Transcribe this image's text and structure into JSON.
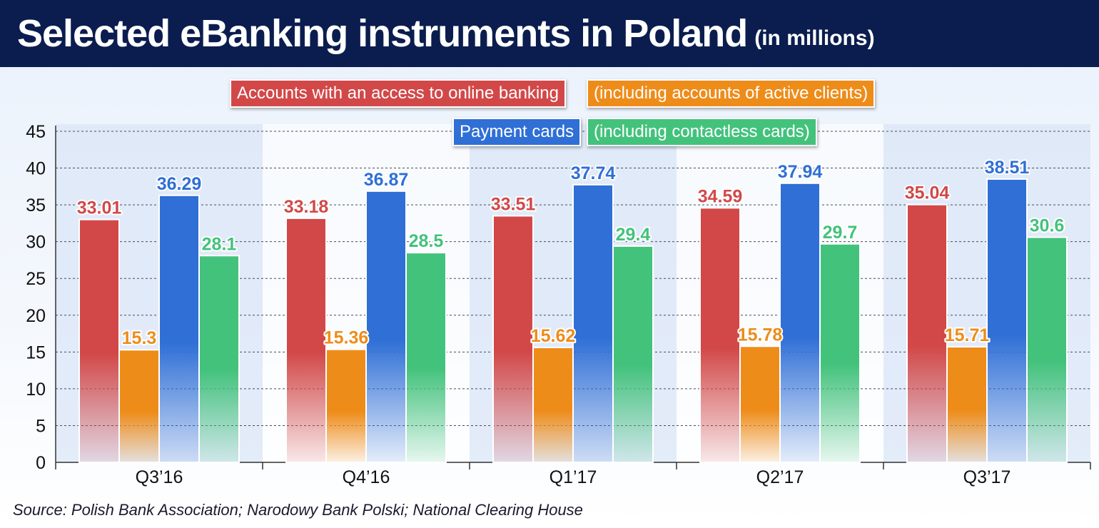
{
  "header": {
    "title": "Selected eBanking instruments in Poland",
    "subtitle": "(in millions)"
  },
  "legend": {
    "accounts": "Accounts with an access to online banking",
    "accounts_active": "(including accounts of active clients)",
    "cards": "Payment cards",
    "cards_contactless": "(including contactless cards)"
  },
  "source": "Source: Polish Bank Association; Narodowy Bank Polski; National Clearing House",
  "colors": {
    "accounts": "#d24848",
    "accounts_active": "#ee8c1a",
    "cards": "#2f6fd6",
    "cards_contactless": "#43c27c"
  },
  "chart_data": {
    "type": "bar",
    "title": "Selected eBanking instruments in Poland",
    "subtitle": "(in millions)",
    "categories": [
      "Q3’16",
      "Q4’16",
      "Q1’17",
      "Q2’17",
      "Q3’17"
    ],
    "series": [
      {
        "name": "Accounts with an access to online banking",
        "values": [
          33.01,
          33.18,
          33.51,
          34.59,
          35.04
        ],
        "labels": [
          "33.01",
          "33.18",
          "33.51",
          "34.59",
          "35.04"
        ]
      },
      {
        "name": "(including accounts of active clients)",
        "values": [
          15.3,
          15.36,
          15.62,
          15.78,
          15.71
        ],
        "labels": [
          "15.3",
          "15.36",
          "15.62",
          "15.78",
          "15.71"
        ]
      },
      {
        "name": "Payment cards",
        "values": [
          36.29,
          36.87,
          37.74,
          37.94,
          38.51
        ],
        "labels": [
          "36.29",
          "36.87",
          "37.74",
          "37.94",
          "38.51"
        ]
      },
      {
        "name": "(including contactless cards)",
        "values": [
          28.1,
          28.5,
          29.4,
          29.7,
          30.6
        ],
        "labels": [
          "28.1",
          "28.5",
          "29.4",
          "29.7",
          "30.6"
        ]
      }
    ],
    "ylim": [
      0,
      45
    ],
    "yticks": [
      0,
      5,
      10,
      15,
      20,
      25,
      30,
      35,
      40,
      45
    ],
    "ytick_labels": [
      "0",
      "5",
      "10",
      "15",
      "20",
      "25",
      "30",
      "35",
      "40",
      "45"
    ],
    "grid": true,
    "legend_position": "top-center"
  }
}
